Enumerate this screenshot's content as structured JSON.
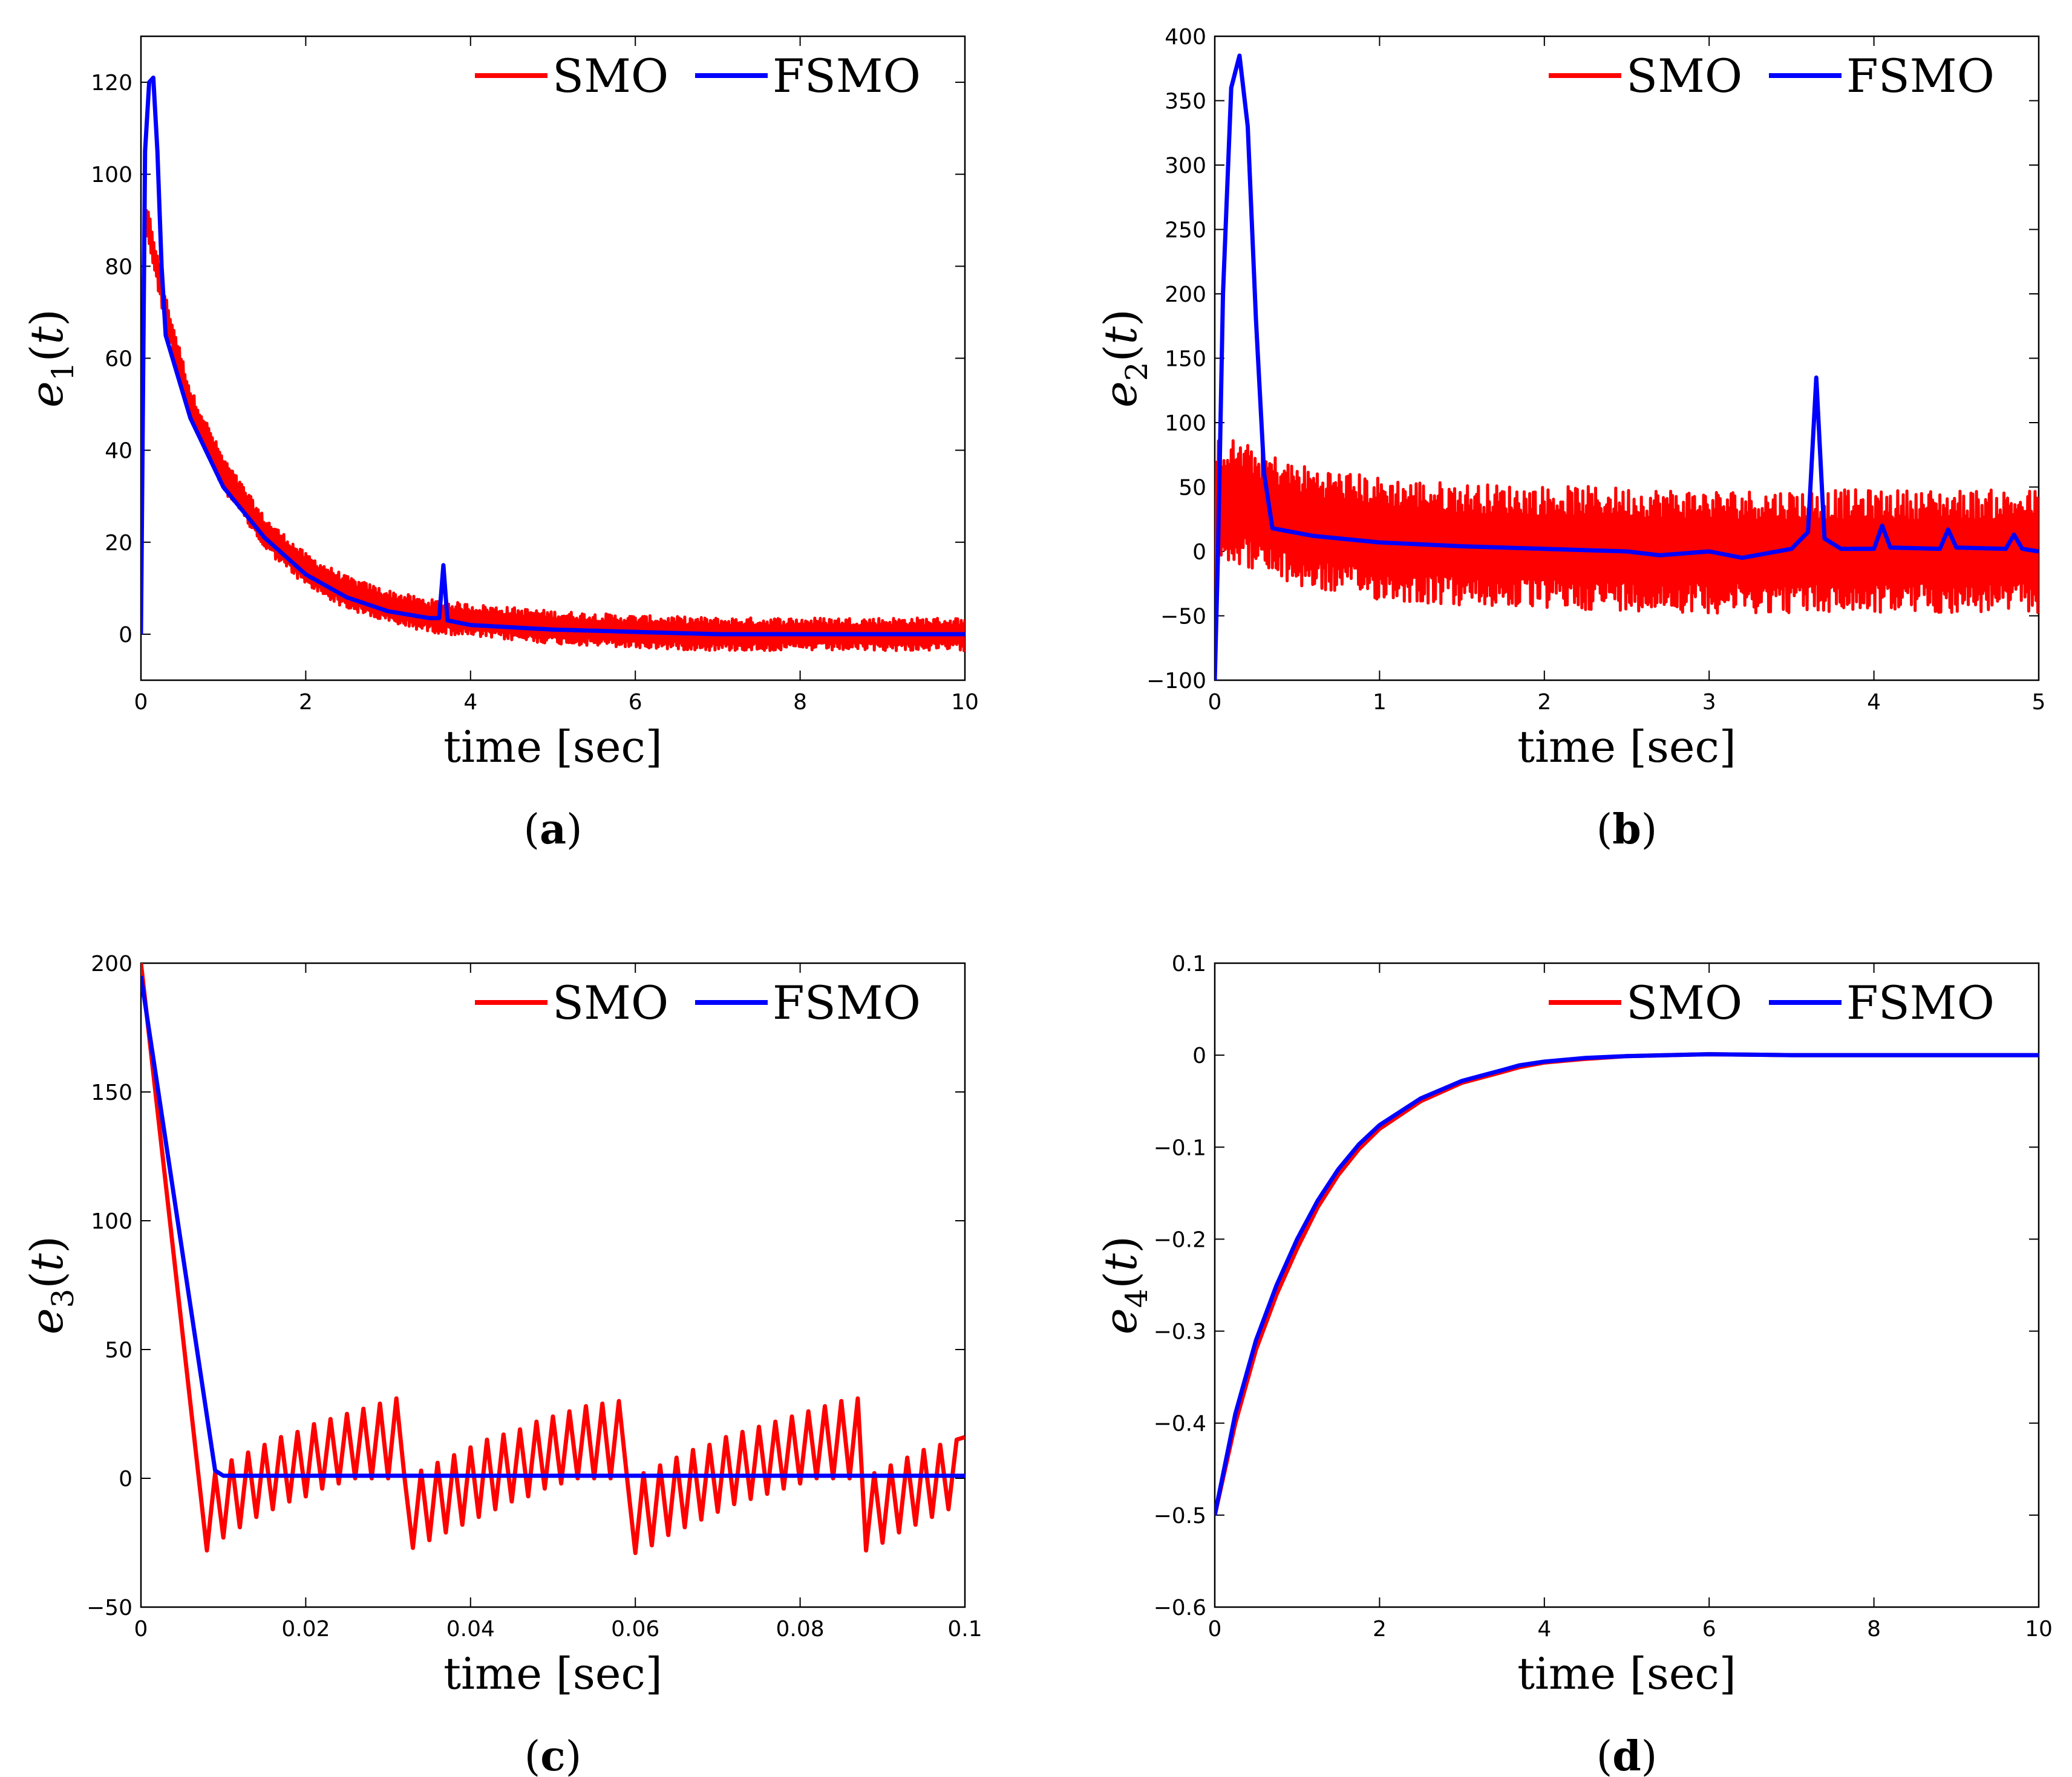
{
  "colors": {
    "SMO": "#ff0000",
    "FSMO": "#0000ff"
  },
  "chart_data": [
    {
      "type": "line",
      "panel_label": "a",
      "xlabel": "time [sec]",
      "ylabel_var": "e",
      "ylabel_sub": "1",
      "ylabel_arg": "t",
      "xlim": [
        0,
        10
      ],
      "ylim": [
        -10,
        130
      ],
      "xticks": [
        0,
        2,
        4,
        6,
        8,
        10
      ],
      "yticks": [
        0,
        20,
        40,
        60,
        80,
        100,
        120
      ],
      "xtick_labels": [
        "0",
        "2",
        "4",
        "6",
        "8",
        "10"
      ],
      "ytick_labels": [
        "0",
        "20",
        "40",
        "60",
        "80",
        "100",
        "120"
      ],
      "legend": [
        "SMO",
        "FSMO"
      ],
      "legend_position": "top-right",
      "series": [
        {
          "name": "SMO",
          "color": "#ff0000",
          "x": [
            0,
            0.04,
            0.1,
            0.3,
            0.6,
            1.0,
            1.5,
            2.0,
            2.5,
            3.0,
            3.5,
            4.0,
            5.0,
            6.0,
            7.0,
            8.0,
            9.0,
            10.0
          ],
          "y": [
            0,
            90,
            88,
            70,
            50,
            35,
            22,
            14,
            9,
            6,
            4,
            3,
            1.5,
            0.5,
            0,
            0,
            0,
            0
          ],
          "chatter": 3
        },
        {
          "name": "FSMO",
          "color": "#0000ff",
          "x": [
            0,
            0.05,
            0.1,
            0.15,
            0.2,
            0.25,
            0.3,
            0.6,
            1.0,
            1.5,
            2.0,
            2.5,
            3.0,
            3.5,
            3.62,
            3.67,
            3.72,
            4.0,
            5.0,
            6.0,
            7.0,
            8.0,
            9.0,
            10.0
          ],
          "y": [
            0,
            105,
            120,
            121,
            105,
            80,
            65,
            47,
            32,
            21,
            13,
            8,
            5,
            3.5,
            3.5,
            15,
            3,
            2,
            1,
            0.5,
            0,
            0,
            0,
            0
          ]
        }
      ]
    },
    {
      "type": "line",
      "panel_label": "b",
      "xlabel": "time [sec]",
      "ylabel_var": "e",
      "ylabel_sub": "2",
      "ylabel_arg": "t",
      "xlim": [
        0,
        5
      ],
      "ylim": [
        -100,
        400
      ],
      "xticks": [
        0,
        1,
        2,
        3,
        4,
        5
      ],
      "yticks": [
        -100,
        -50,
        0,
        50,
        100,
        150,
        200,
        250,
        300,
        350,
        400
      ],
      "xtick_labels": [
        "0",
        "1",
        "2",
        "3",
        "4",
        "5"
      ],
      "ytick_labels": [
        "−100",
        "−50",
        "0",
        "50",
        "100",
        "150",
        "200",
        "250",
        "300",
        "350",
        "400"
      ],
      "legend": [
        "SMO",
        "FSMO"
      ],
      "legend_position": "top-right",
      "series": [
        {
          "name": "SMO",
          "color": "#ff0000",
          "x": [
            0,
            0.02,
            0.1,
            0.5,
            1.0,
            1.5,
            2.0,
            2.5,
            3.0,
            3.5,
            4.0,
            4.5,
            5.0
          ],
          "y": [
            0,
            40,
            40,
            20,
            10,
            5,
            3,
            2,
            0,
            0,
            0,
            0,
            0
          ],
          "chatter": 40
        },
        {
          "name": "FSMO",
          "color": "#0000ff",
          "x": [
            0,
            0.02,
            0.05,
            0.1,
            0.15,
            0.2,
            0.25,
            0.3,
            0.35,
            0.6,
            1.0,
            1.5,
            2.0,
            2.5,
            2.7,
            3.0,
            3.2,
            3.5,
            3.6,
            3.65,
            3.7,
            3.8,
            4.0,
            4.05,
            4.1,
            4.4,
            4.45,
            4.5,
            4.8,
            4.85,
            4.9,
            5.0
          ],
          "y": [
            -100,
            0,
            200,
            360,
            385,
            330,
            180,
            60,
            18,
            12,
            7,
            4,
            2,
            0,
            -3,
            0,
            -5,
            2,
            15,
            135,
            10,
            2,
            2,
            20,
            3,
            2,
            17,
            3,
            2,
            13,
            2,
            0
          ]
        }
      ]
    },
    {
      "type": "line",
      "panel_label": "c",
      "xlabel": "time [sec]",
      "ylabel_var": "e",
      "ylabel_sub": "3",
      "ylabel_arg": "t",
      "xlim": [
        0,
        0.1
      ],
      "ylim": [
        -50,
        200
      ],
      "xticks": [
        0,
        0.02,
        0.04,
        0.06,
        0.08,
        0.1
      ],
      "yticks": [
        -50,
        0,
        50,
        100,
        150,
        200
      ],
      "xtick_labels": [
        "0",
        "0.02",
        "0.04",
        "0.06",
        "0.08",
        "0.1"
      ],
      "ytick_labels": [
        "−50",
        "0",
        "50",
        "100",
        "150",
        "200"
      ],
      "legend": [
        "SMO",
        "FSMO"
      ],
      "legend_position": "top-right",
      "series": [
        {
          "name": "SMO",
          "color": "#ff0000",
          "x": [
            0,
            0.008,
            0.009,
            0.01,
            0.011,
            0.012,
            0.013,
            0.014,
            0.015,
            0.016,
            0.017,
            0.018,
            0.019,
            0.02,
            0.021,
            0.022,
            0.023,
            0.024,
            0.025,
            0.026,
            0.027,
            0.028,
            0.029,
            0.03,
            0.031,
            0.032,
            0.033,
            0.034,
            0.035,
            0.036,
            0.037,
            0.038,
            0.039,
            0.04,
            0.041,
            0.042,
            0.043,
            0.044,
            0.045,
            0.046,
            0.047,
            0.048,
            0.049,
            0.05,
            0.051,
            0.052,
            0.053,
            0.054,
            0.055,
            0.056,
            0.057,
            0.058,
            0.059,
            0.06,
            0.061,
            0.062,
            0.063,
            0.064,
            0.065,
            0.066,
            0.067,
            0.068,
            0.069,
            0.07,
            0.071,
            0.072,
            0.073,
            0.074,
            0.075,
            0.076,
            0.077,
            0.078,
            0.079,
            0.08,
            0.081,
            0.082,
            0.083,
            0.084,
            0.085,
            0.086,
            0.087,
            0.088,
            0.089,
            0.09,
            0.091,
            0.092,
            0.093,
            0.094,
            0.095,
            0.096,
            0.097,
            0.098,
            0.099,
            0.1
          ],
          "y": [
            200,
            -28,
            2,
            -23,
            7,
            -19,
            10,
            -15,
            13,
            -12,
            16,
            -9,
            18,
            -7,
            21,
            -4,
            23,
            -2,
            25,
            0,
            27,
            0,
            29,
            0,
            31,
            0,
            -27,
            3,
            -24,
            6,
            -21,
            9,
            -18,
            12,
            -15,
            15,
            -12,
            17,
            -9,
            19,
            -7,
            22,
            -4,
            24,
            -2,
            26,
            0,
            28,
            0,
            29,
            0,
            30,
            0,
            -29,
            2,
            -26,
            5,
            -22,
            8,
            -19,
            11,
            -16,
            13,
            -13,
            16,
            -10,
            18,
            -8,
            20,
            -6,
            22,
            -4,
            24,
            -2,
            26,
            0,
            28,
            0,
            30,
            0,
            31,
            -28,
            2,
            -25,
            5,
            -21,
            8,
            -18,
            11,
            -15,
            13,
            -12,
            15,
            16
          ]
        },
        {
          "name": "FSMO",
          "color": "#0000ff",
          "x": [
            0,
            0.009,
            0.01,
            0.1
          ],
          "y": [
            195,
            3,
            1,
            1
          ]
        }
      ]
    },
    {
      "type": "line",
      "panel_label": "d",
      "xlabel": "time [sec]",
      "ylabel_var": "e",
      "ylabel_sub": "4",
      "ylabel_arg": "t",
      "xlim": [
        0,
        10
      ],
      "ylim": [
        -0.6,
        0.1
      ],
      "xticks": [
        0,
        2,
        4,
        6,
        8,
        10
      ],
      "yticks": [
        -0.6,
        -0.5,
        -0.4,
        -0.3,
        -0.2,
        -0.1,
        0,
        0.1
      ],
      "xtick_labels": [
        "0",
        "2",
        "4",
        "6",
        "8",
        "10"
      ],
      "ytick_labels": [
        "−0.6",
        "−0.5",
        "−0.4",
        "−0.3",
        "−0.2",
        "−0.1",
        "0",
        "0.1"
      ],
      "legend": [
        "SMO",
        "FSMO"
      ],
      "legend_position": "top-right",
      "series": [
        {
          "name": "SMO",
          "color": "#ff0000",
          "x": [
            0,
            0.25,
            0.5,
            0.75,
            1.0,
            1.25,
            1.5,
            1.75,
            2.0,
            2.5,
            3.0,
            3.5,
            3.7,
            4.0,
            4.5,
            5.0,
            6.0,
            7.0,
            8.0,
            9.0,
            10.0
          ],
          "y": [
            -0.5,
            -0.4,
            -0.32,
            -0.26,
            -0.21,
            -0.165,
            -0.13,
            -0.102,
            -0.08,
            -0.05,
            -0.03,
            -0.018,
            -0.013,
            -0.008,
            -0.004,
            -0.001,
            0.001,
            0.0,
            0.0,
            0.0,
            0.0
          ]
        },
        {
          "name": "FSMO",
          "color": "#0000ff",
          "x": [
            0,
            0.25,
            0.5,
            0.75,
            1.0,
            1.25,
            1.5,
            1.75,
            2.0,
            2.5,
            3.0,
            3.5,
            3.7,
            4.0,
            4.5,
            5.0,
            6.0,
            7.0,
            8.0,
            9.0,
            10.0
          ],
          "y": [
            -0.5,
            -0.39,
            -0.31,
            -0.25,
            -0.2,
            -0.158,
            -0.124,
            -0.097,
            -0.076,
            -0.047,
            -0.028,
            -0.016,
            -0.011,
            -0.007,
            -0.003,
            -0.001,
            0.001,
            0.0,
            0.0,
            0.0,
            0.0
          ]
        }
      ]
    }
  ]
}
